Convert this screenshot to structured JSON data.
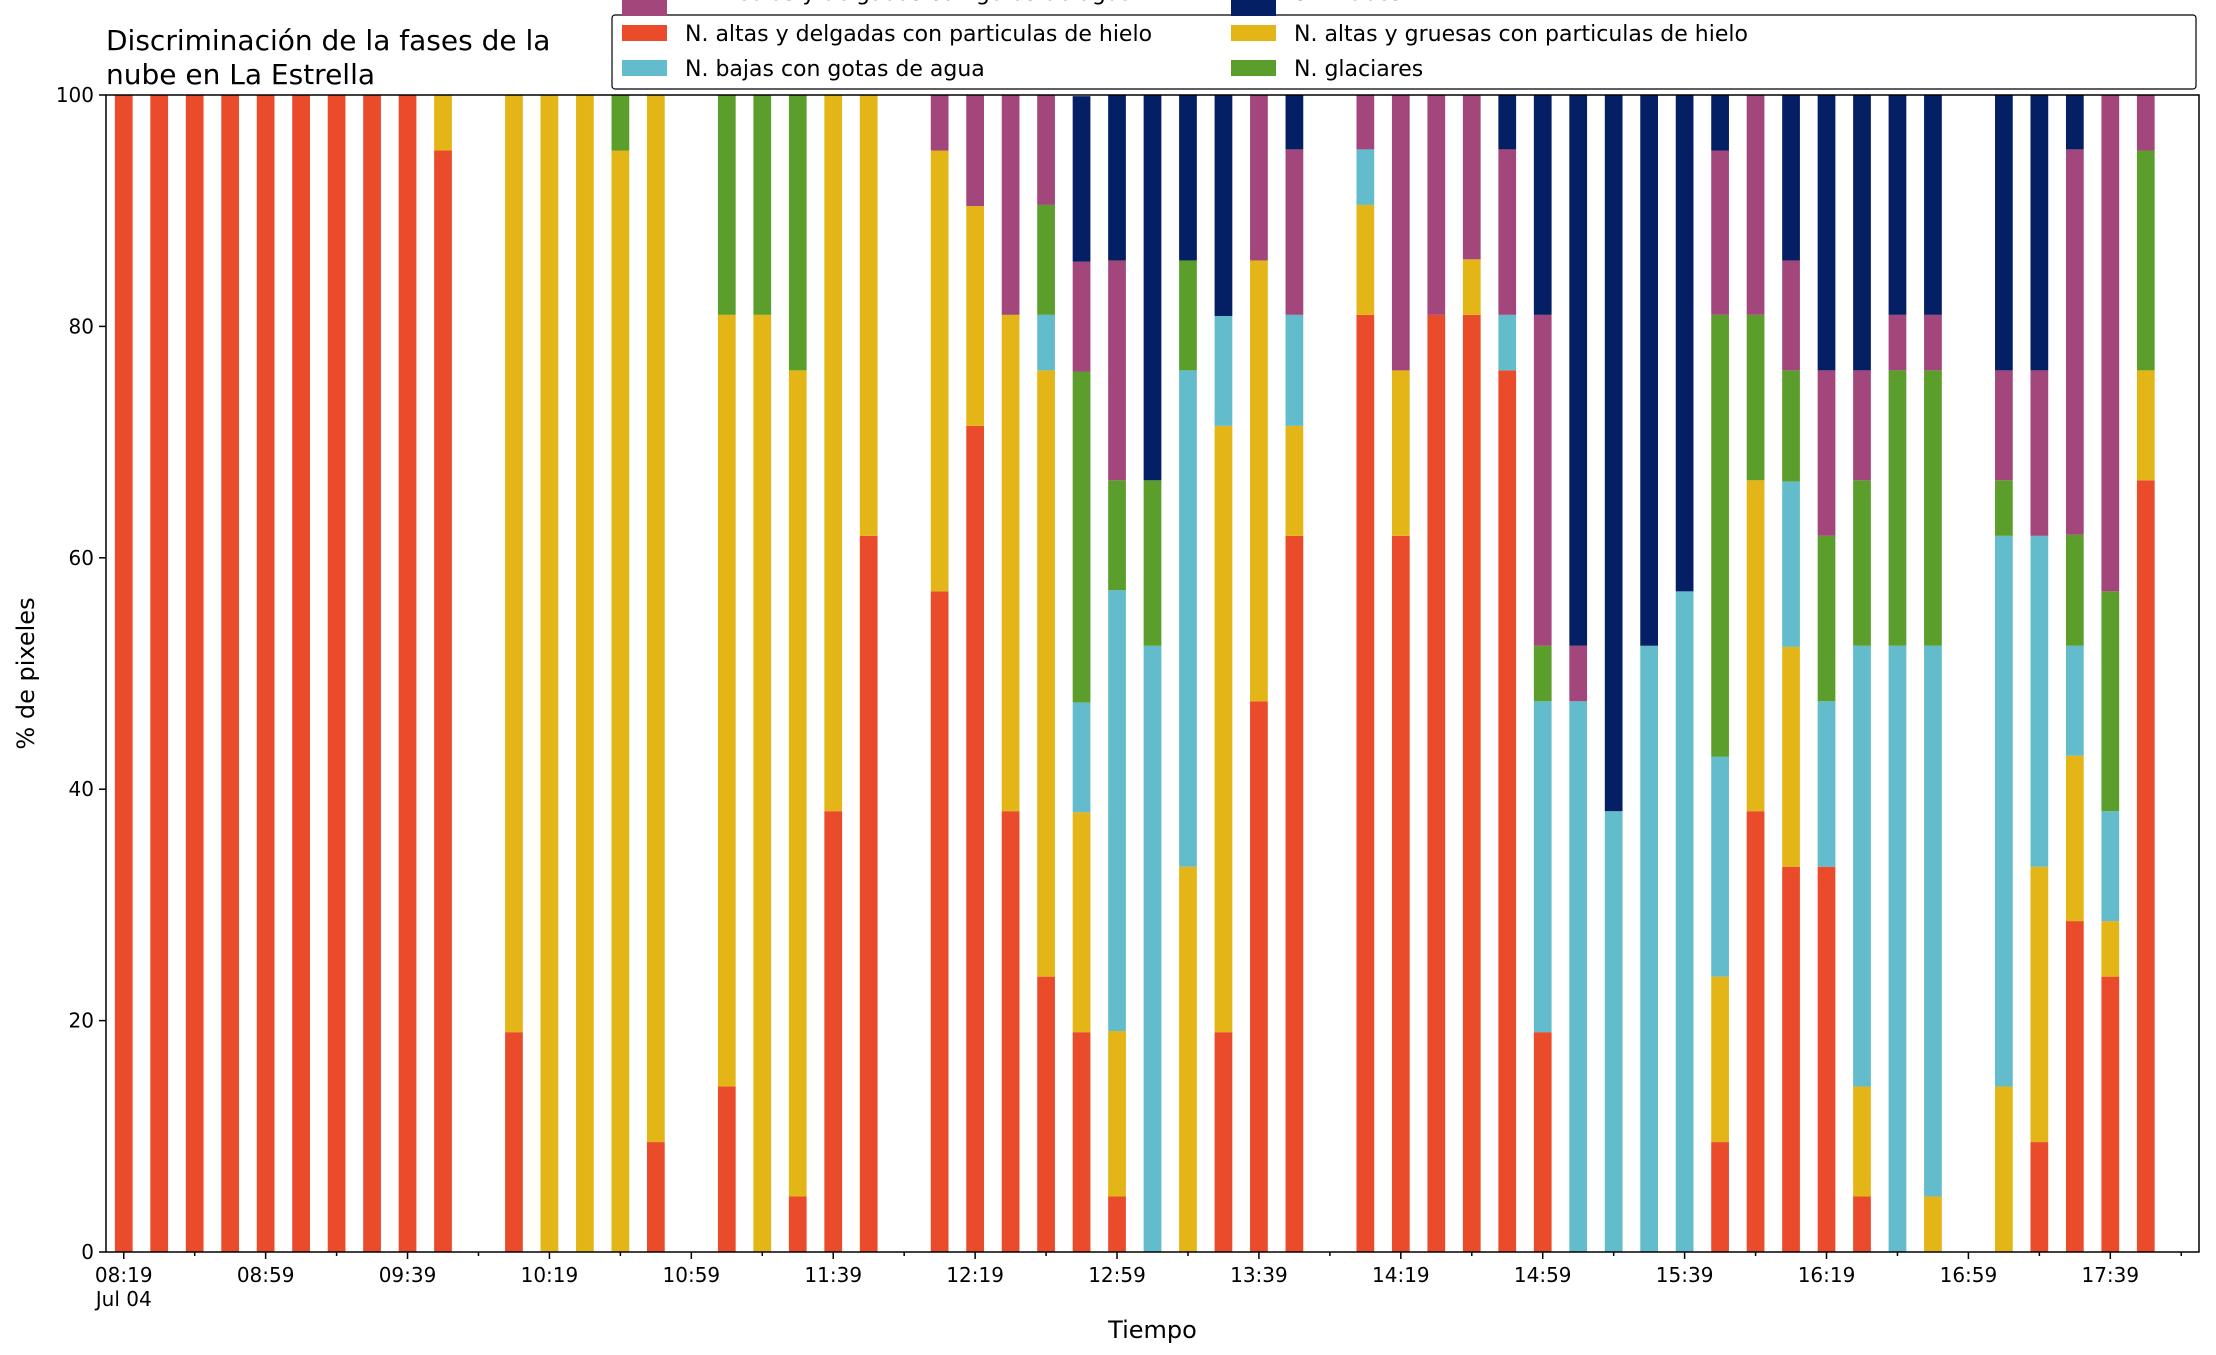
{
  "chart_data": {
    "type": "bar",
    "stacked": true,
    "title_lines": [
      "Discriminación de la fases de la",
      "nube en La Estrella"
    ],
    "xlabel": "Tiempo",
    "ylabel": "% de pixeles",
    "ylim": [
      0,
      100
    ],
    "yticks": [
      0,
      20,
      40,
      60,
      80,
      100
    ],
    "x_major_ticks": [
      {
        "slot": 0,
        "label": "08:19",
        "sublabel": "Jul 04"
      },
      {
        "slot": 4,
        "label": "08:59"
      },
      {
        "slot": 8,
        "label": "09:39"
      },
      {
        "slot": 12,
        "label": "10:19"
      },
      {
        "slot": 16,
        "label": "10:59"
      },
      {
        "slot": 20,
        "label": "11:39"
      },
      {
        "slot": 24,
        "label": "12:19"
      },
      {
        "slot": 28,
        "label": "12:59"
      },
      {
        "slot": 32,
        "label": "13:39"
      },
      {
        "slot": 36,
        "label": "14:19"
      },
      {
        "slot": 40,
        "label": "14:59"
      },
      {
        "slot": 44,
        "label": "15:39"
      },
      {
        "slot": 48,
        "label": "16:19"
      },
      {
        "slot": 52,
        "label": "16:59"
      },
      {
        "slot": 56,
        "label": "17:39"
      }
    ],
    "x_slot_range": [
      -0.5,
      58.5
    ],
    "legend_position": "top-right",
    "series": [
      {
        "name": "N. altas y delgadas con particulas de hielo",
        "color": "#ea4b2a"
      },
      {
        "name": "N. altas y gruesas con particulas de hielo",
        "color": "#e3b516"
      },
      {
        "name": "N. bajas con gotas de agua",
        "color": "#63bccb"
      },
      {
        "name": "N. glaciares",
        "color": "#5c9e2b"
      },
      {
        "name": "N. medias y delgadas con gotas de agua",
        "color": "#a2467c"
      },
      {
        "name": "Sin nubes",
        "color": "#041f63"
      }
    ],
    "legend_layout": [
      [
        0,
        2,
        4
      ],
      [
        1,
        3,
        5
      ]
    ],
    "bars": [
      {
        "slot": 0,
        "values": [
          100,
          0,
          0,
          0,
          0,
          0
        ]
      },
      {
        "slot": 1,
        "values": [
          100,
          0,
          0,
          0,
          0,
          0
        ]
      },
      {
        "slot": 2,
        "values": [
          100,
          0,
          0,
          0,
          0,
          0
        ]
      },
      {
        "slot": 3,
        "values": [
          100,
          0,
          0,
          0,
          0,
          0
        ]
      },
      {
        "slot": 4,
        "values": [
          100,
          0,
          0,
          0,
          0,
          0
        ]
      },
      {
        "slot": 5,
        "values": [
          100,
          0,
          0,
          0,
          0,
          0
        ]
      },
      {
        "slot": 6,
        "values": [
          100,
          0,
          0,
          0,
          0,
          0
        ]
      },
      {
        "slot": 7,
        "values": [
          100,
          0,
          0,
          0,
          0,
          0
        ]
      },
      {
        "slot": 8,
        "values": [
          100,
          0,
          0,
          0,
          0,
          0
        ]
      },
      {
        "slot": 9,
        "values": [
          95.2,
          4.8,
          0,
          0,
          0,
          0
        ]
      },
      {
        "slot": 11,
        "values": [
          19,
          81,
          0,
          0,
          0,
          0
        ]
      },
      {
        "slot": 12,
        "values": [
          0,
          100,
          0,
          0,
          0,
          0
        ]
      },
      {
        "slot": 13,
        "values": [
          0,
          100,
          0,
          0,
          0,
          0
        ]
      },
      {
        "slot": 14,
        "values": [
          0,
          95.2,
          0,
          4.8,
          0,
          0
        ]
      },
      {
        "slot": 15,
        "values": [
          9.5,
          90.5,
          0,
          0,
          0,
          0
        ]
      },
      {
        "slot": 17,
        "values": [
          14.3,
          66.7,
          0,
          19,
          0,
          0
        ]
      },
      {
        "slot": 18,
        "values": [
          0,
          81,
          0,
          19,
          0,
          0
        ]
      },
      {
        "slot": 19,
        "values": [
          4.8,
          71.4,
          0,
          23.8,
          0,
          0
        ]
      },
      {
        "slot": 20,
        "values": [
          38.1,
          61.9,
          0,
          0,
          0,
          0
        ]
      },
      {
        "slot": 21,
        "values": [
          61.9,
          38.1,
          0,
          0,
          0,
          0
        ]
      },
      {
        "slot": 23,
        "values": [
          57.1,
          38.1,
          0,
          0,
          4.8,
          0
        ]
      },
      {
        "slot": 24,
        "values": [
          71.4,
          19,
          0,
          0,
          9.6,
          0
        ]
      },
      {
        "slot": 25,
        "values": [
          38.1,
          42.9,
          0,
          0,
          19,
          0
        ]
      },
      {
        "slot": 26,
        "values": [
          23.8,
          52.4,
          4.8,
          9.5,
          9.5,
          0
        ]
      },
      {
        "slot": 27,
        "values": [
          19,
          19,
          9.5,
          28.6,
          9.5,
          14.3
        ]
      },
      {
        "slot": 28,
        "values": [
          4.8,
          14.3,
          38.1,
          9.5,
          19,
          14.3
        ]
      },
      {
        "slot": 29,
        "values": [
          0,
          0,
          52.4,
          14.3,
          0,
          33.3
        ]
      },
      {
        "slot": 30,
        "values": [
          0,
          33.3,
          42.9,
          9.5,
          0,
          14.3
        ]
      },
      {
        "slot": 31,
        "values": [
          19,
          52.4,
          9.5,
          0,
          0,
          19.1
        ]
      },
      {
        "slot": 32,
        "values": [
          47.6,
          38.1,
          0,
          0,
          14.3,
          0
        ]
      },
      {
        "slot": 33,
        "values": [
          61.9,
          9.5,
          9.6,
          0,
          14.3,
          4.7
        ]
      },
      {
        "slot": 35,
        "values": [
          81,
          9.5,
          4.8,
          0,
          4.7,
          0
        ]
      },
      {
        "slot": 36,
        "values": [
          61.9,
          14.3,
          0,
          0,
          23.8,
          0
        ]
      },
      {
        "slot": 37,
        "values": [
          81,
          0,
          0,
          0,
          19,
          0
        ]
      },
      {
        "slot": 38,
        "values": [
          81,
          4.8,
          0,
          0,
          14.2,
          0
        ]
      },
      {
        "slot": 39,
        "values": [
          76.2,
          0,
          4.8,
          0,
          14.3,
          4.7
        ]
      },
      {
        "slot": 40,
        "values": [
          19,
          0,
          28.6,
          4.8,
          28.6,
          19
        ]
      },
      {
        "slot": 41,
        "values": [
          0,
          0,
          47.6,
          0,
          4.8,
          47.6
        ]
      },
      {
        "slot": 42,
        "values": [
          0,
          0,
          38.1,
          0,
          0,
          61.9
        ]
      },
      {
        "slot": 43,
        "values": [
          0,
          0,
          52.4,
          0,
          0,
          47.6
        ]
      },
      {
        "slot": 44,
        "values": [
          0,
          0,
          57.1,
          0,
          0,
          42.9
        ]
      },
      {
        "slot": 45,
        "values": [
          9.5,
          14.3,
          19,
          38.2,
          14.2,
          4.8
        ]
      },
      {
        "slot": 46,
        "values": [
          38.1,
          28.6,
          0,
          14.3,
          19,
          0
        ]
      },
      {
        "slot": 47,
        "values": [
          33.3,
          19,
          14.3,
          9.6,
          9.5,
          14.3
        ]
      },
      {
        "slot": 48,
        "values": [
          33.3,
          0,
          14.3,
          14.3,
          14.3,
          23.8
        ]
      },
      {
        "slot": 49,
        "values": [
          4.8,
          9.5,
          38.1,
          14.3,
          9.5,
          23.8
        ]
      },
      {
        "slot": 50,
        "values": [
          0,
          0,
          52.4,
          23.8,
          4.8,
          19
        ]
      },
      {
        "slot": 51,
        "values": [
          0,
          4.8,
          47.6,
          23.8,
          4.8,
          19
        ]
      },
      {
        "slot": 53,
        "values": [
          0,
          14.3,
          47.6,
          4.8,
          9.5,
          23.8
        ]
      },
      {
        "slot": 54,
        "values": [
          9.5,
          23.8,
          28.6,
          0,
          14.3,
          23.8
        ]
      },
      {
        "slot": 55,
        "values": [
          28.6,
          14.3,
          9.5,
          9.6,
          33.3,
          4.7
        ]
      },
      {
        "slot": 56,
        "values": [
          23.8,
          4.8,
          9.5,
          19,
          42.9,
          0
        ]
      },
      {
        "slot": 57,
        "values": [
          66.7,
          9.5,
          0,
          19,
          4.8,
          0
        ]
      }
    ]
  }
}
